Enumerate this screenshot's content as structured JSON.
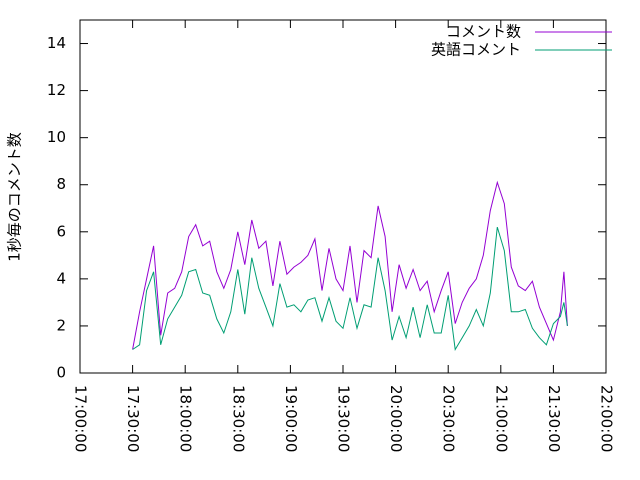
{
  "chart_data": {
    "type": "line",
    "ylabel": "1秒毎のコメント数",
    "x": [
      "17:30:00",
      "17:34:00",
      "17:38:00",
      "17:42:00",
      "17:46:00",
      "17:50:00",
      "17:54:00",
      "17:58:00",
      "18:02:00",
      "18:06:00",
      "18:10:00",
      "18:14:00",
      "18:18:00",
      "18:22:00",
      "18:26:00",
      "18:30:00",
      "18:34:00",
      "18:38:00",
      "18:42:00",
      "18:46:00",
      "18:50:00",
      "18:54:00",
      "18:58:00",
      "19:02:00",
      "19:06:00",
      "19:10:00",
      "19:14:00",
      "19:18:00",
      "19:22:00",
      "19:26:00",
      "19:30:00",
      "19:34:00",
      "19:38:00",
      "19:42:00",
      "19:46:00",
      "19:50:00",
      "19:54:00",
      "19:58:00",
      "20:02:00",
      "20:06:00",
      "20:10:00",
      "20:14:00",
      "20:18:00",
      "20:22:00",
      "20:26:00",
      "20:30:00",
      "20:34:00",
      "20:38:00",
      "20:42:00",
      "20:46:00",
      "20:50:00",
      "20:54:00",
      "20:58:00",
      "21:02:00",
      "21:06:00",
      "21:10:00",
      "21:14:00",
      "21:18:00",
      "21:22:00",
      "21:26:00",
      "21:30:00",
      "21:34:00",
      "21:36:00",
      "21:38:00"
    ],
    "series": [
      {
        "name": "コメント数",
        "color": "#9400d3",
        "values": [
          1.0,
          2.6,
          4.0,
          5.4,
          1.6,
          3.4,
          3.6,
          4.3,
          5.8,
          6.3,
          5.4,
          5.6,
          4.3,
          3.6,
          4.4,
          6.0,
          4.6,
          6.5,
          5.3,
          5.6,
          3.7,
          5.6,
          4.2,
          4.5,
          4.7,
          5.0,
          5.7,
          3.5,
          5.3,
          4.0,
          3.5,
          5.4,
          3.0,
          5.2,
          4.9,
          7.1,
          5.8,
          2.6,
          4.6,
          3.6,
          4.4,
          3.5,
          3.9,
          2.6,
          3.5,
          4.3,
          2.1,
          3.0,
          3.6,
          4.0,
          5.0,
          6.9,
          8.1,
          7.2,
          4.5,
          3.7,
          3.5,
          3.9,
          2.8,
          2.1,
          1.4,
          2.6,
          4.3,
          2.0
        ]
      },
      {
        "name": "英語コメント",
        "color": "#009e73",
        "values": [
          1.0,
          1.2,
          3.5,
          4.3,
          1.2,
          2.3,
          2.8,
          3.3,
          4.3,
          4.4,
          3.4,
          3.3,
          2.3,
          1.7,
          2.6,
          4.4,
          2.5,
          4.9,
          3.6,
          2.8,
          2.0,
          3.8,
          2.8,
          2.9,
          2.6,
          3.1,
          3.2,
          2.2,
          3.2,
          2.2,
          1.9,
          3.2,
          1.9,
          2.9,
          2.8,
          4.9,
          3.5,
          1.4,
          2.4,
          1.5,
          2.8,
          1.5,
          2.9,
          1.7,
          1.7,
          3.3,
          1.0,
          1.5,
          2.0,
          2.7,
          2.0,
          3.4,
          6.2,
          5.2,
          2.6,
          2.6,
          2.7,
          1.9,
          1.5,
          1.2,
          2.1,
          2.4,
          3.0,
          2.0
        ]
      }
    ],
    "xlim": [
      "17:00:00",
      "22:00:00"
    ],
    "xticks": [
      "17:00:00",
      "17:30:00",
      "18:00:00",
      "18:30:00",
      "19:00:00",
      "19:30:00",
      "20:00:00",
      "20:30:00",
      "21:00:00",
      "21:30:00",
      "22:00:00"
    ],
    "ylim": [
      0,
      15
    ],
    "yticks": [
      0,
      2,
      4,
      6,
      8,
      10,
      12,
      14
    ],
    "legend": "top-right"
  }
}
